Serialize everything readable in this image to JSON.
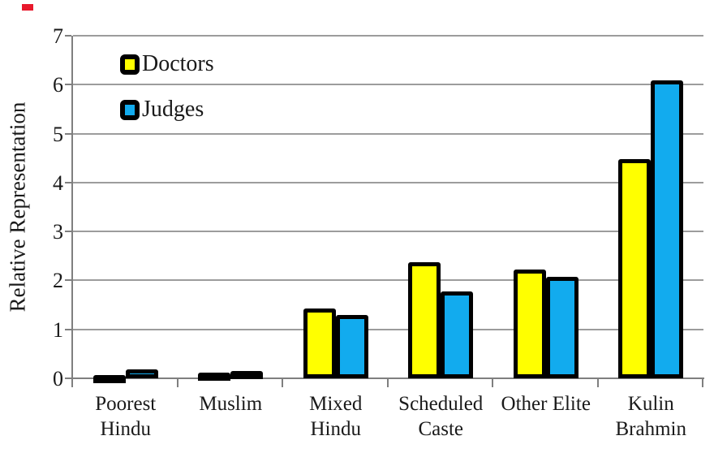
{
  "chart_data": {
    "type": "bar",
    "title": "",
    "xlabel": "",
    "ylabel": "Relative Representation",
    "ylim": [
      0,
      7
    ],
    "yticks": [
      0,
      1,
      2,
      3,
      4,
      5,
      6,
      7
    ],
    "grid": true,
    "legend_position": "top-left-inside",
    "categories": [
      "Poorest Hindu",
      "Muslim",
      "Mixed Hindu",
      "Scheduled Caste",
      "Other Elite",
      "Kulin Brahmin"
    ],
    "category_label_lines": [
      [
        "Poorest",
        "Hindu"
      ],
      [
        "Muslim"
      ],
      [
        "Mixed",
        "Hindu"
      ],
      [
        "Scheduled",
        "Caste"
      ],
      [
        "Other Elite"
      ],
      [
        "Kulin",
        "Brahmin"
      ]
    ],
    "series": [
      {
        "name": "Doctors",
        "color": "#FFFF00",
        "values": [
          0.07,
          0.11,
          1.42,
          2.38,
          2.22,
          4.48
        ]
      },
      {
        "name": "Judges",
        "color": "#12ABEE",
        "values": [
          0.19,
          0.15,
          1.3,
          1.77,
          2.08,
          6.08
        ]
      }
    ],
    "bar_border_color": "#000000",
    "axis_color": "#7f7f7f",
    "gridline_color": "#9c9c9c",
    "text_color": "#1a1a1a"
  },
  "decorations": {
    "corner_mark_color": "#e8192c"
  }
}
